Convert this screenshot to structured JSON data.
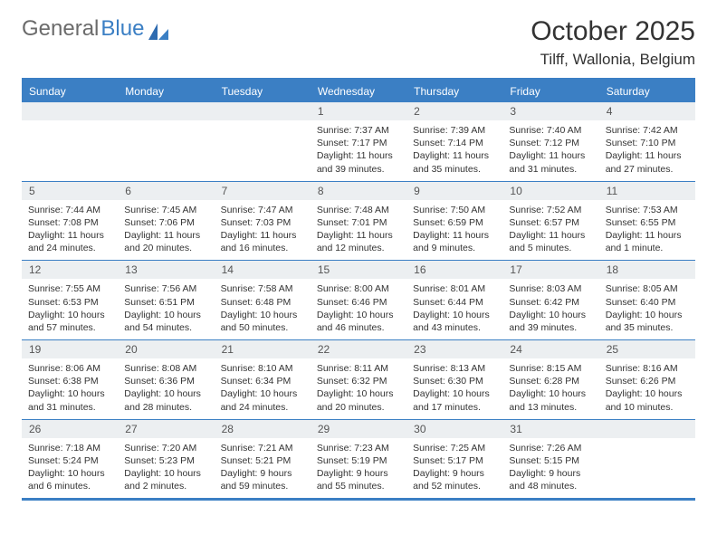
{
  "logo": {
    "text1": "General",
    "text2": "Blue"
  },
  "title": "October 2025",
  "location": "Tilff, Wallonia, Belgium",
  "colors": {
    "header_bg": "#3b7fc4",
    "date_bg": "#eceff1",
    "border": "#3b7fc4",
    "text": "#333333",
    "logo_gray": "#6b6b6b"
  },
  "day_headers": [
    "Sunday",
    "Monday",
    "Tuesday",
    "Wednesday",
    "Thursday",
    "Friday",
    "Saturday"
  ],
  "weeks": [
    [
      {
        "date": "",
        "sunrise": "",
        "sunset": "",
        "daylight": ""
      },
      {
        "date": "",
        "sunrise": "",
        "sunset": "",
        "daylight": ""
      },
      {
        "date": "",
        "sunrise": "",
        "sunset": "",
        "daylight": ""
      },
      {
        "date": "1",
        "sunrise": "Sunrise: 7:37 AM",
        "sunset": "Sunset: 7:17 PM",
        "daylight": "Daylight: 11 hours and 39 minutes."
      },
      {
        "date": "2",
        "sunrise": "Sunrise: 7:39 AM",
        "sunset": "Sunset: 7:14 PM",
        "daylight": "Daylight: 11 hours and 35 minutes."
      },
      {
        "date": "3",
        "sunrise": "Sunrise: 7:40 AM",
        "sunset": "Sunset: 7:12 PM",
        "daylight": "Daylight: 11 hours and 31 minutes."
      },
      {
        "date": "4",
        "sunrise": "Sunrise: 7:42 AM",
        "sunset": "Sunset: 7:10 PM",
        "daylight": "Daylight: 11 hours and 27 minutes."
      }
    ],
    [
      {
        "date": "5",
        "sunrise": "Sunrise: 7:44 AM",
        "sunset": "Sunset: 7:08 PM",
        "daylight": "Daylight: 11 hours and 24 minutes."
      },
      {
        "date": "6",
        "sunrise": "Sunrise: 7:45 AM",
        "sunset": "Sunset: 7:06 PM",
        "daylight": "Daylight: 11 hours and 20 minutes."
      },
      {
        "date": "7",
        "sunrise": "Sunrise: 7:47 AM",
        "sunset": "Sunset: 7:03 PM",
        "daylight": "Daylight: 11 hours and 16 minutes."
      },
      {
        "date": "8",
        "sunrise": "Sunrise: 7:48 AM",
        "sunset": "Sunset: 7:01 PM",
        "daylight": "Daylight: 11 hours and 12 minutes."
      },
      {
        "date": "9",
        "sunrise": "Sunrise: 7:50 AM",
        "sunset": "Sunset: 6:59 PM",
        "daylight": "Daylight: 11 hours and 9 minutes."
      },
      {
        "date": "10",
        "sunrise": "Sunrise: 7:52 AM",
        "sunset": "Sunset: 6:57 PM",
        "daylight": "Daylight: 11 hours and 5 minutes."
      },
      {
        "date": "11",
        "sunrise": "Sunrise: 7:53 AM",
        "sunset": "Sunset: 6:55 PM",
        "daylight": "Daylight: 11 hours and 1 minute."
      }
    ],
    [
      {
        "date": "12",
        "sunrise": "Sunrise: 7:55 AM",
        "sunset": "Sunset: 6:53 PM",
        "daylight": "Daylight: 10 hours and 57 minutes."
      },
      {
        "date": "13",
        "sunrise": "Sunrise: 7:56 AM",
        "sunset": "Sunset: 6:51 PM",
        "daylight": "Daylight: 10 hours and 54 minutes."
      },
      {
        "date": "14",
        "sunrise": "Sunrise: 7:58 AM",
        "sunset": "Sunset: 6:48 PM",
        "daylight": "Daylight: 10 hours and 50 minutes."
      },
      {
        "date": "15",
        "sunrise": "Sunrise: 8:00 AM",
        "sunset": "Sunset: 6:46 PM",
        "daylight": "Daylight: 10 hours and 46 minutes."
      },
      {
        "date": "16",
        "sunrise": "Sunrise: 8:01 AM",
        "sunset": "Sunset: 6:44 PM",
        "daylight": "Daylight: 10 hours and 43 minutes."
      },
      {
        "date": "17",
        "sunrise": "Sunrise: 8:03 AM",
        "sunset": "Sunset: 6:42 PM",
        "daylight": "Daylight: 10 hours and 39 minutes."
      },
      {
        "date": "18",
        "sunrise": "Sunrise: 8:05 AM",
        "sunset": "Sunset: 6:40 PM",
        "daylight": "Daylight: 10 hours and 35 minutes."
      }
    ],
    [
      {
        "date": "19",
        "sunrise": "Sunrise: 8:06 AM",
        "sunset": "Sunset: 6:38 PM",
        "daylight": "Daylight: 10 hours and 31 minutes."
      },
      {
        "date": "20",
        "sunrise": "Sunrise: 8:08 AM",
        "sunset": "Sunset: 6:36 PM",
        "daylight": "Daylight: 10 hours and 28 minutes."
      },
      {
        "date": "21",
        "sunrise": "Sunrise: 8:10 AM",
        "sunset": "Sunset: 6:34 PM",
        "daylight": "Daylight: 10 hours and 24 minutes."
      },
      {
        "date": "22",
        "sunrise": "Sunrise: 8:11 AM",
        "sunset": "Sunset: 6:32 PM",
        "daylight": "Daylight: 10 hours and 20 minutes."
      },
      {
        "date": "23",
        "sunrise": "Sunrise: 8:13 AM",
        "sunset": "Sunset: 6:30 PM",
        "daylight": "Daylight: 10 hours and 17 minutes."
      },
      {
        "date": "24",
        "sunrise": "Sunrise: 8:15 AM",
        "sunset": "Sunset: 6:28 PM",
        "daylight": "Daylight: 10 hours and 13 minutes."
      },
      {
        "date": "25",
        "sunrise": "Sunrise: 8:16 AM",
        "sunset": "Sunset: 6:26 PM",
        "daylight": "Daylight: 10 hours and 10 minutes."
      }
    ],
    [
      {
        "date": "26",
        "sunrise": "Sunrise: 7:18 AM",
        "sunset": "Sunset: 5:24 PM",
        "daylight": "Daylight: 10 hours and 6 minutes."
      },
      {
        "date": "27",
        "sunrise": "Sunrise: 7:20 AM",
        "sunset": "Sunset: 5:23 PM",
        "daylight": "Daylight: 10 hours and 2 minutes."
      },
      {
        "date": "28",
        "sunrise": "Sunrise: 7:21 AM",
        "sunset": "Sunset: 5:21 PM",
        "daylight": "Daylight: 9 hours and 59 minutes."
      },
      {
        "date": "29",
        "sunrise": "Sunrise: 7:23 AM",
        "sunset": "Sunset: 5:19 PM",
        "daylight": "Daylight: 9 hours and 55 minutes."
      },
      {
        "date": "30",
        "sunrise": "Sunrise: 7:25 AM",
        "sunset": "Sunset: 5:17 PM",
        "daylight": "Daylight: 9 hours and 52 minutes."
      },
      {
        "date": "31",
        "sunrise": "Sunrise: 7:26 AM",
        "sunset": "Sunset: 5:15 PM",
        "daylight": "Daylight: 9 hours and 48 minutes."
      },
      {
        "date": "",
        "sunrise": "",
        "sunset": "",
        "daylight": ""
      }
    ]
  ]
}
